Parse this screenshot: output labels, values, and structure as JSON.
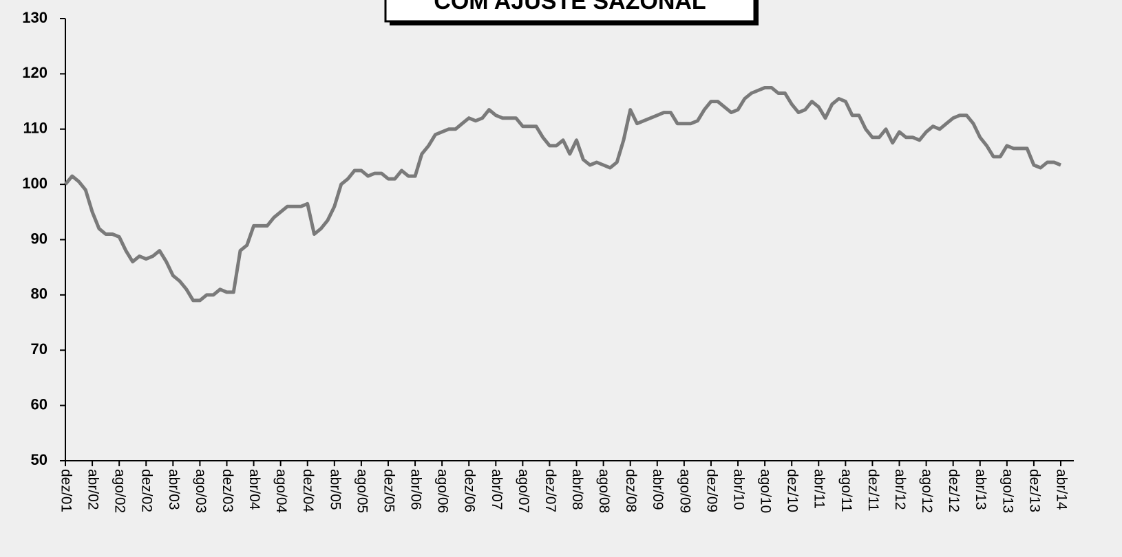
{
  "chart_data": {
    "type": "line",
    "title": "COM AJUSTE SAZONAL",
    "categories": [
      "dez/01",
      null,
      null,
      null,
      "abr/02",
      null,
      null,
      null,
      "ago/02",
      null,
      null,
      null,
      "dez/02",
      null,
      null,
      null,
      "abr/03",
      null,
      null,
      null,
      "ago/03",
      null,
      null,
      null,
      "dez/03",
      null,
      null,
      null,
      "abr/04",
      null,
      null,
      null,
      "ago/04",
      null,
      null,
      null,
      "dez/04",
      null,
      null,
      null,
      "abr/05",
      null,
      null,
      null,
      "ago/05",
      null,
      null,
      null,
      "dez/05",
      null,
      null,
      null,
      "abr/06",
      null,
      null,
      null,
      "ago/06",
      null,
      null,
      null,
      "dez/06",
      null,
      null,
      null,
      "abr/07",
      null,
      null,
      null,
      "ago/07",
      null,
      null,
      null,
      "dez/07",
      null,
      null,
      null,
      "abr/08",
      null,
      null,
      null,
      "ago/08",
      null,
      null,
      null,
      "dez/08",
      null,
      null,
      null,
      "abr/09",
      null,
      null,
      null,
      "ago/09",
      null,
      null,
      null,
      "dez/09",
      null,
      null,
      null,
      "abr/10",
      null,
      null,
      null,
      "ago/10",
      null,
      null,
      null,
      "dez/10",
      null,
      null,
      null,
      "abr/11",
      null,
      null,
      null,
      "ago/11",
      null,
      null,
      null,
      "dez/11",
      null,
      null,
      null,
      "abr/12",
      null,
      null,
      null,
      "ago/12",
      null,
      null,
      null,
      "dez/12",
      null,
      null,
      null,
      "abr/13",
      null,
      null,
      null,
      "ago/13",
      null,
      null,
      null,
      "dez/13",
      null,
      null,
      null,
      "abr/14"
    ],
    "values": [
      100,
      101.5,
      100.5,
      99,
      95,
      92,
      91,
      91,
      90.5,
      88,
      86,
      87,
      86.5,
      87,
      88,
      86,
      83.5,
      82.5,
      81,
      79,
      79,
      80,
      80,
      81,
      80.5,
      80.5,
      88,
      89,
      92.5,
      92.5,
      92.5,
      94,
      95,
      96,
      96,
      96,
      96.5,
      91,
      92,
      93.5,
      96,
      100,
      101,
      102.5,
      102.5,
      101.5,
      102,
      102,
      101,
      101,
      102.5,
      101.5,
      101.5,
      105.5,
      107,
      109,
      109.5,
      110,
      110,
      111,
      112,
      111.5,
      112,
      113.5,
      112.5,
      112,
      112,
      112,
      110.5,
      110.5,
      110.5,
      108.5,
      107,
      107,
      108,
      105.5,
      108,
      104.5,
      103.5,
      104,
      103.5,
      103,
      104,
      108,
      113.5,
      111,
      111.5,
      112,
      112.5,
      113,
      113,
      111,
      111,
      111,
      111.5,
      113.5,
      115,
      115,
      114,
      113,
      113.5,
      115.5,
      116.5,
      117,
      117.5,
      117.5,
      116.5,
      116.5,
      114.5,
      113,
      113.5,
      115,
      114,
      112,
      114.5,
      115.5,
      115,
      112.5,
      112.5,
      110,
      108.5,
      108.5,
      110,
      107.5,
      109.5,
      108.5,
      108.5,
      108,
      109.5,
      110.5,
      110,
      111,
      112,
      112.5,
      112.5,
      111,
      108.5,
      107,
      105,
      105,
      107,
      106.5,
      106.5,
      106.5,
      103.5,
      103,
      104,
      104,
      103.5
    ],
    "color": "#7a7a7a",
    "ylim": [
      50,
      130
    ],
    "yticks": [
      50,
      60,
      70,
      80,
      90,
      100,
      110,
      120,
      130
    ],
    "grid": false
  }
}
